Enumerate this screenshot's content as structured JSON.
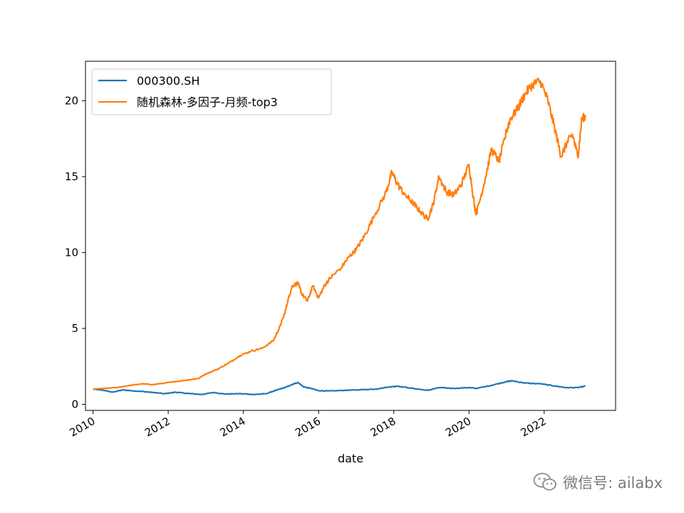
{
  "chart_data": {
    "type": "line",
    "title": "",
    "xlabel": "date",
    "ylabel": "",
    "xlim": [
      2009.8,
      2023.9
    ],
    "ylim": [
      -0.4,
      22.6
    ],
    "x_ticks": [
      2010,
      2012,
      2014,
      2016,
      2018,
      2020,
      2022
    ],
    "y_ticks": [
      0,
      5,
      10,
      15,
      20
    ],
    "grid": false,
    "legend_position": "top-left",
    "series": [
      {
        "name": "000300.SH",
        "color": "#1f77b4",
        "x": [
          2010.0,
          2010.3,
          2010.5,
          2010.8,
          2011.0,
          2011.3,
          2011.6,
          2011.9,
          2012.2,
          2012.5,
          2012.9,
          2013.2,
          2013.5,
          2013.9,
          2014.3,
          2014.6,
          2014.9,
          2015.1,
          2015.3,
          2015.45,
          2015.6,
          2015.8,
          2016.0,
          2016.3,
          2016.7,
          2017.0,
          2017.5,
          2017.9,
          2018.1,
          2018.5,
          2018.9,
          2019.2,
          2019.6,
          2020.0,
          2020.2,
          2020.6,
          2021.0,
          2021.15,
          2021.5,
          2021.9,
          2022.3,
          2022.6,
          2022.9,
          2023.1
        ],
        "values": [
          1.0,
          0.92,
          0.8,
          0.95,
          0.9,
          0.85,
          0.78,
          0.7,
          0.8,
          0.72,
          0.65,
          0.78,
          0.68,
          0.7,
          0.65,
          0.7,
          0.95,
          1.1,
          1.3,
          1.45,
          1.15,
          1.05,
          0.9,
          0.88,
          0.92,
          0.95,
          1.0,
          1.15,
          1.2,
          1.05,
          0.92,
          1.1,
          1.05,
          1.1,
          1.05,
          1.25,
          1.5,
          1.55,
          1.4,
          1.35,
          1.2,
          1.1,
          1.1,
          1.2
        ]
      },
      {
        "name": "随机森林-多因子-月频-top3",
        "color": "#ff7f0e",
        "x": [
          2010.0,
          2010.3,
          2010.6,
          2011.0,
          2011.3,
          2011.6,
          2011.9,
          2012.2,
          2012.5,
          2012.8,
          2013.0,
          2013.3,
          2013.6,
          2013.9,
          2014.2,
          2014.5,
          2014.8,
          2014.95,
          2015.1,
          2015.2,
          2015.3,
          2015.45,
          2015.55,
          2015.7,
          2015.85,
          2016.0,
          2016.15,
          2016.3,
          2016.6,
          2016.8,
          2017.0,
          2017.2,
          2017.5,
          2017.8,
          2017.95,
          2018.1,
          2018.3,
          2018.5,
          2018.7,
          2018.9,
          2019.05,
          2019.2,
          2019.4,
          2019.6,
          2019.8,
          2020.0,
          2020.15,
          2020.2,
          2020.4,
          2020.6,
          2020.8,
          2021.0,
          2021.1,
          2021.3,
          2021.5,
          2021.7,
          2021.9,
          2022.1,
          2022.3,
          2022.45,
          2022.6,
          2022.75,
          2022.9,
          2023.0,
          2023.1
        ],
        "values": [
          1.0,
          1.05,
          1.1,
          1.25,
          1.35,
          1.3,
          1.4,
          1.5,
          1.6,
          1.7,
          2.0,
          2.3,
          2.7,
          3.2,
          3.5,
          3.7,
          4.2,
          5.0,
          6.0,
          7.0,
          7.8,
          8.0,
          7.3,
          6.8,
          7.8,
          7.0,
          7.8,
          8.3,
          9.0,
          9.7,
          10.2,
          11.0,
          12.5,
          14.0,
          15.3,
          14.5,
          13.8,
          13.3,
          12.7,
          12.2,
          13.2,
          15.0,
          14.0,
          13.8,
          14.5,
          15.8,
          13.0,
          12.6,
          14.5,
          16.8,
          16.0,
          18.0,
          18.8,
          19.5,
          20.5,
          21.1,
          21.3,
          20.0,
          18.0,
          16.3,
          17.2,
          17.8,
          16.3,
          18.8,
          19.0
        ]
      }
    ]
  },
  "watermark": {
    "icon": "wechat-icon",
    "text": "微信号: ailabx",
    "color": "#7a7a7a"
  }
}
